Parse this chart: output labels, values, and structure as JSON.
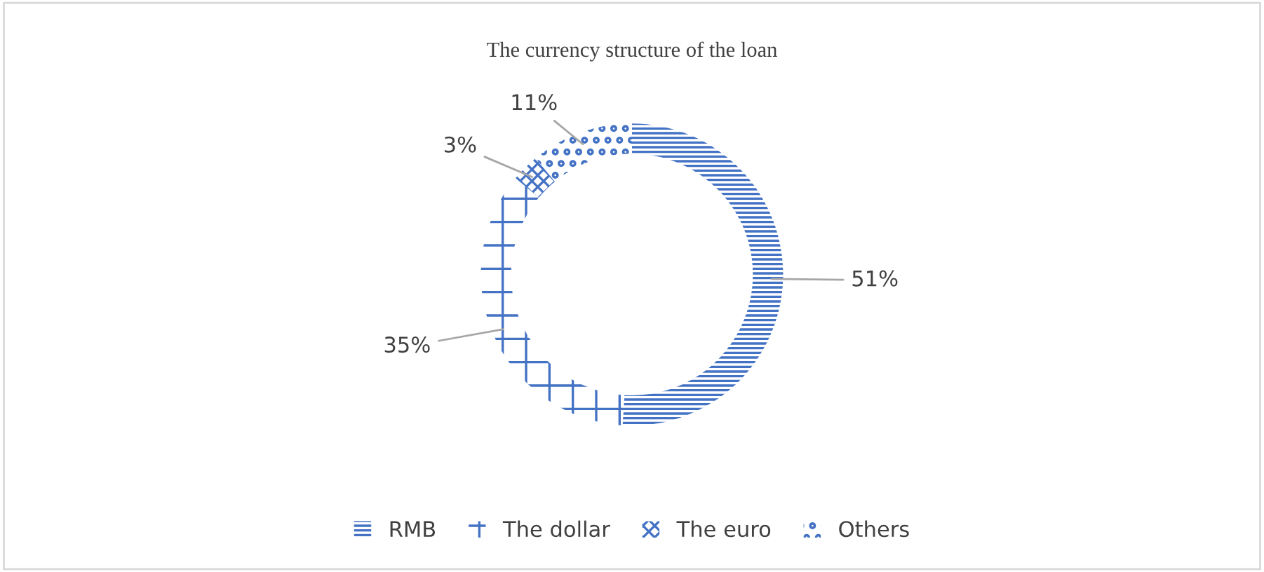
{
  "chart_data": {
    "type": "donut",
    "title": "The currency structure of the loan",
    "categories": [
      "RMB",
      "The dollar",
      "The euro",
      "Others"
    ],
    "values": [
      51,
      35,
      3,
      11
    ],
    "colors": [
      "#4472c4",
      "#4472c4",
      "#4472c4",
      "#4472c4"
    ],
    "value_labels": [
      "51%",
      "35%",
      "3%",
      "11%"
    ],
    "legend": "bottom"
  }
}
